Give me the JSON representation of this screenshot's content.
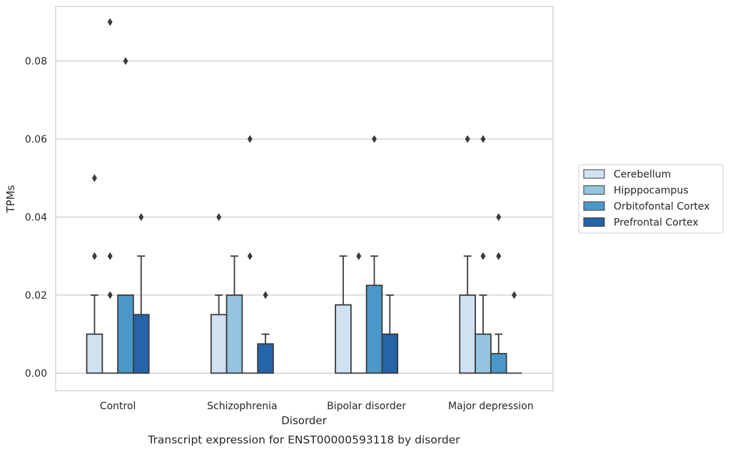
{
  "chart_data": {
    "type": "bar",
    "title": "",
    "caption": "Transcript expression for ENST00000593118 by disorder",
    "xlabel": "Disorder",
    "ylabel": "TPMs",
    "ylim": [
      -0.0045,
      0.094
    ],
    "yticks": [
      "0.00",
      "0.02",
      "0.04",
      "0.06",
      "0.08"
    ],
    "ytick_values": [
      0,
      0.02,
      0.04,
      0.06,
      0.08
    ],
    "grid": true,
    "legend_position": "right",
    "categories": [
      "Control",
      "Schizophrenia",
      "Bipolar disorder",
      "Major depression"
    ],
    "series": [
      {
        "name": "Cerebellum",
        "color": "#d0e1f2",
        "q1": [
          0,
          0,
          0,
          0
        ],
        "q3": [
          0.01,
          0.015,
          0.0175,
          0.02
        ],
        "whisker_high": [
          0.02,
          0.02,
          0.03,
          0.03
        ],
        "outliers": [
          [
            0.03,
            0.05
          ],
          [
            0.04
          ],
          [],
          [
            0.06
          ]
        ]
      },
      {
        "name": "Hipppocampus",
        "color": "#94c4df",
        "q1": [
          0,
          0,
          0,
          0
        ],
        "q3": [
          0,
          0.02,
          0,
          0.01
        ],
        "whisker_high": [
          0,
          0.03,
          0,
          0.02
        ],
        "outliers": [
          [
            0.02,
            0.03,
            0.09
          ],
          [],
          [
            0.03
          ],
          [
            0.03,
            0.06
          ]
        ]
      },
      {
        "name": "Orbitofontal Cortex",
        "color": "#4a98c9",
        "q1": [
          0,
          0,
          0,
          0
        ],
        "q3": [
          0.02,
          0,
          0.0225,
          0.005
        ],
        "whisker_high": [
          0.02,
          0,
          0.03,
          0.01
        ],
        "outliers": [
          [
            0.08
          ],
          [
            0.03,
            0.06
          ],
          [
            0.06
          ],
          [
            0.03,
            0.04
          ]
        ]
      },
      {
        "name": "Prefrontal Cortex",
        "color": "#2464a8",
        "q1": [
          0,
          0,
          0,
          0
        ],
        "q3": [
          0.015,
          0.0075,
          0.01,
          0
        ],
        "whisker_high": [
          0.03,
          0.01,
          0.02,
          0
        ],
        "outliers": [
          [
            0.04
          ],
          [
            0.02
          ],
          [],
          [
            0.02
          ]
        ]
      }
    ]
  }
}
